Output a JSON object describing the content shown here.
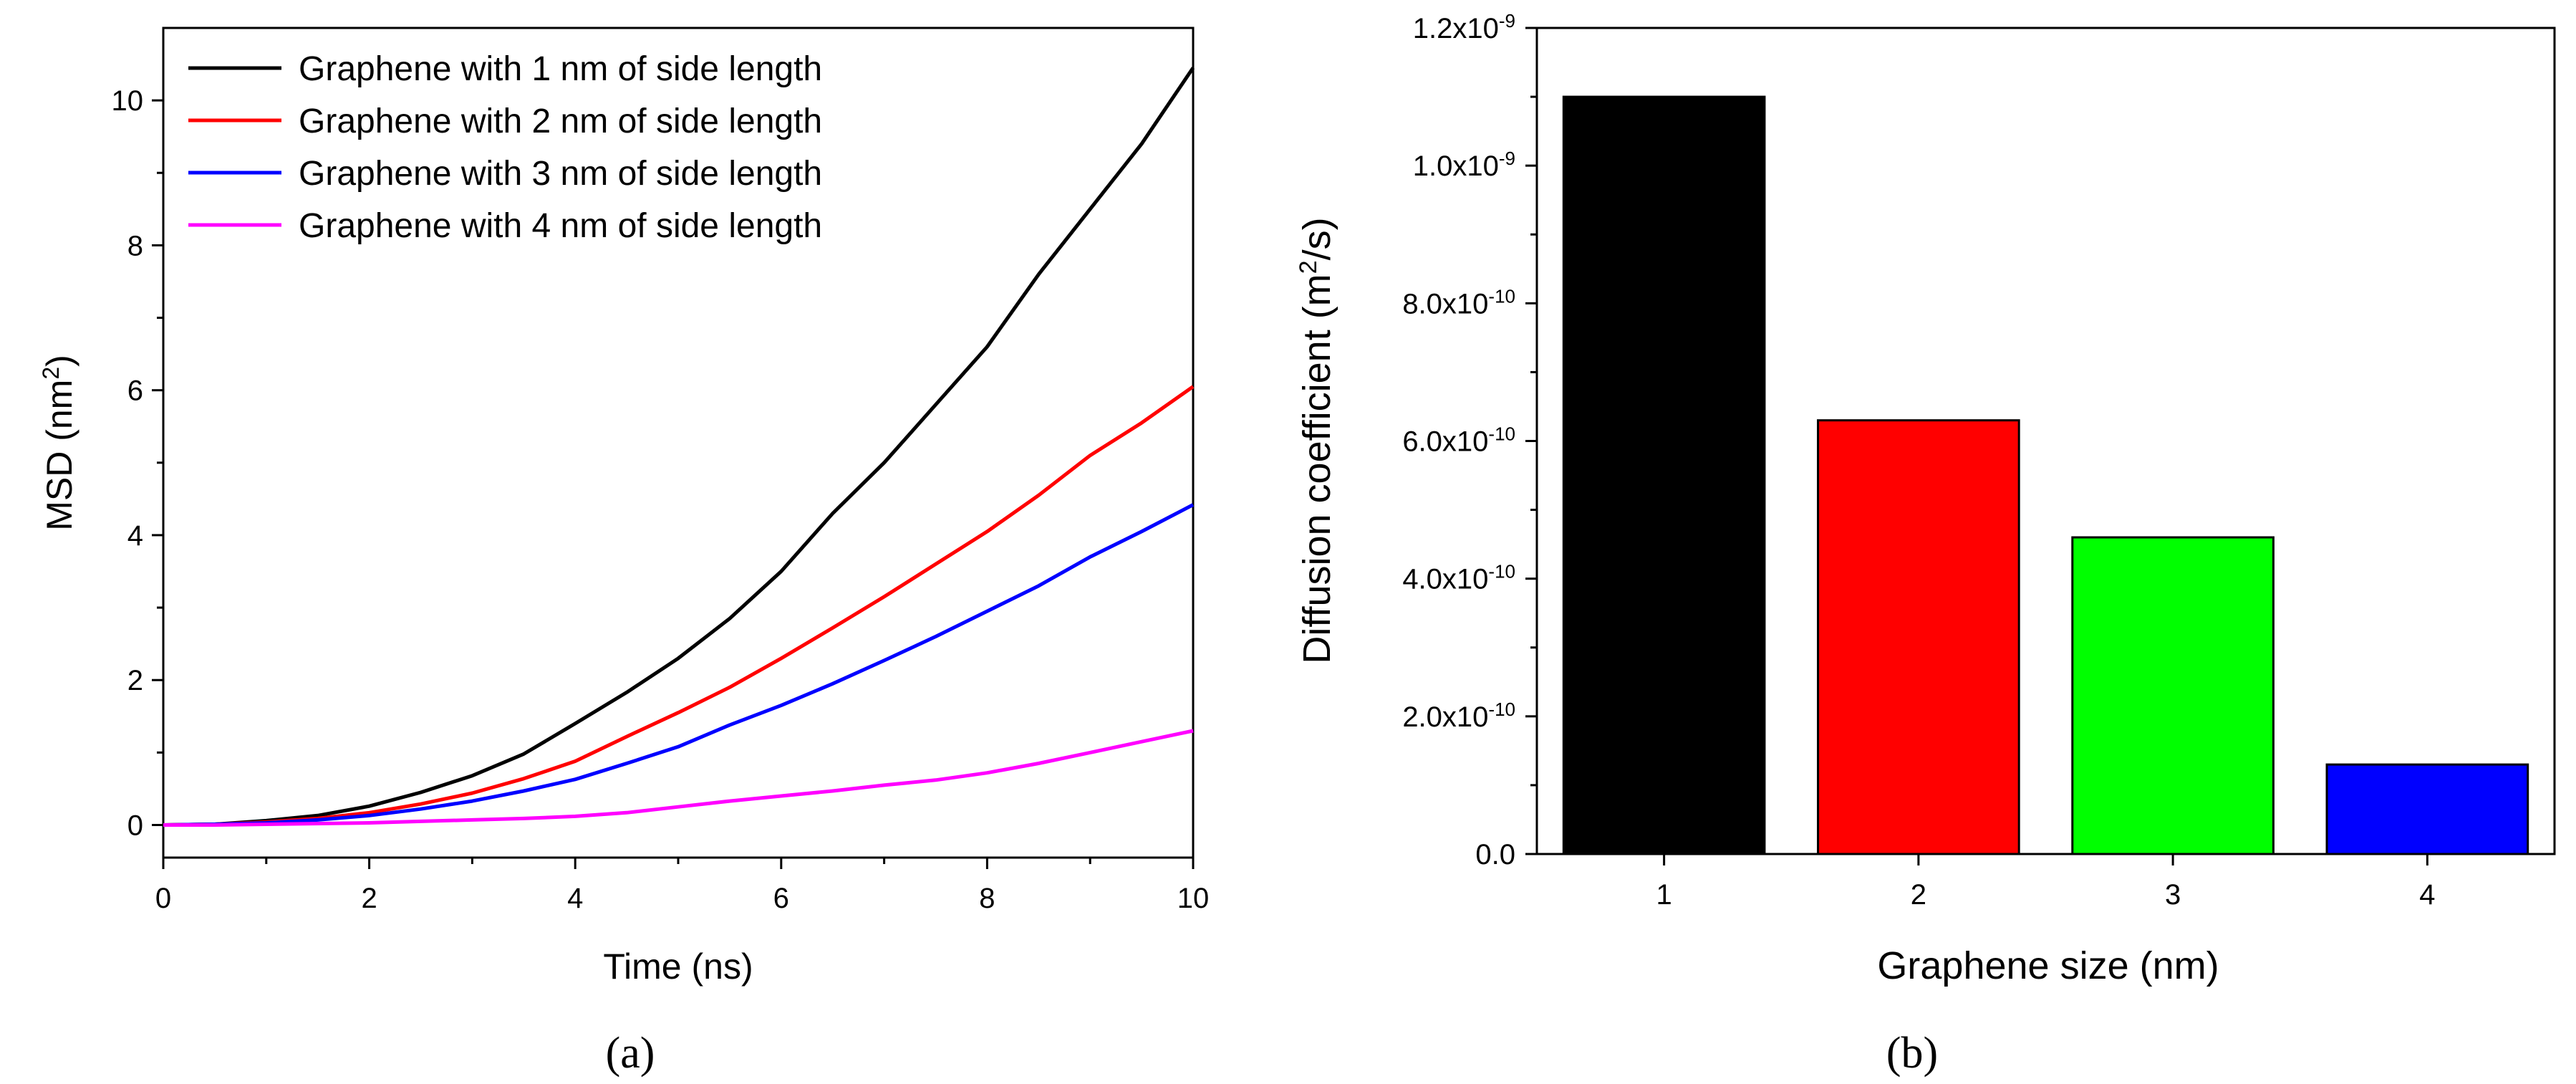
{
  "chart_data": [
    {
      "type": "line",
      "panel_label": "(a)",
      "xlabel": "Time (ns)",
      "ylabel_main": "MSD (nm",
      "ylabel_sup": "2",
      "ylabel_end": ")",
      "xlim": [
        0,
        10
      ],
      "ylim": [
        -0.45,
        11
      ],
      "xticks": [
        0,
        2,
        4,
        6,
        8,
        10
      ],
      "yticks": [
        0,
        2,
        4,
        6,
        8,
        10
      ],
      "legend_position": "top-left",
      "series": [
        {
          "name": "Graphene with 1 nm of side length",
          "color": "#000000",
          "x": [
            0,
            0.5,
            1,
            1.5,
            2,
            2.5,
            3,
            3.5,
            4,
            4.5,
            5,
            5.5,
            6,
            6.5,
            7,
            7.5,
            8,
            8.5,
            9,
            9.5,
            10
          ],
          "y": [
            0,
            0.01,
            0.06,
            0.13,
            0.26,
            0.45,
            0.68,
            0.98,
            1.4,
            1.83,
            2.3,
            2.85,
            3.5,
            4.3,
            5.0,
            5.8,
            6.6,
            7.6,
            8.5,
            9.4,
            10.45
          ]
        },
        {
          "name": "Graphene with 2 nm of side length",
          "color": "#ff0000",
          "x": [
            0,
            0.5,
            1,
            1.5,
            2,
            2.5,
            3,
            3.5,
            4,
            4.5,
            5,
            5.5,
            6,
            6.5,
            7,
            7.5,
            8,
            8.5,
            9,
            9.5,
            10
          ],
          "y": [
            0,
            0.01,
            0.04,
            0.09,
            0.17,
            0.29,
            0.44,
            0.64,
            0.88,
            1.22,
            1.55,
            1.9,
            2.3,
            2.72,
            3.15,
            3.6,
            4.05,
            4.55,
            5.1,
            5.55,
            6.05
          ]
        },
        {
          "name": "Graphene with 3 nm of side length",
          "color": "#0000ff",
          "x": [
            0,
            0.5,
            1,
            1.5,
            2,
            2.5,
            3,
            3.5,
            4,
            4.5,
            5,
            5.5,
            6,
            6.5,
            7,
            7.5,
            8,
            8.5,
            9,
            9.5,
            10
          ],
          "y": [
            0,
            0.01,
            0.03,
            0.07,
            0.13,
            0.22,
            0.33,
            0.47,
            0.63,
            0.85,
            1.08,
            1.38,
            1.65,
            1.95,
            2.27,
            2.6,
            2.95,
            3.3,
            3.7,
            4.05,
            4.42
          ]
        },
        {
          "name": "Graphene with 4 nm of side length",
          "color": "#ff00ff",
          "x": [
            0,
            0.5,
            1,
            1.5,
            2,
            2.5,
            3,
            3.5,
            4,
            4.5,
            5,
            5.5,
            6,
            6.5,
            7,
            7.5,
            8,
            8.5,
            9,
            9.5,
            10
          ],
          "y": [
            0,
            0.0,
            0.01,
            0.02,
            0.03,
            0.05,
            0.07,
            0.09,
            0.12,
            0.17,
            0.25,
            0.33,
            0.4,
            0.47,
            0.55,
            0.62,
            0.72,
            0.85,
            1.0,
            1.15,
            1.3
          ]
        }
      ]
    },
    {
      "type": "bar",
      "panel_label": "(b)",
      "xlabel": "Graphene size (nm)",
      "ylabel_main": "Diffusion coefficient (m",
      "ylabel_sup": "2",
      "ylabel_end": "/s)",
      "categories": [
        "1",
        "2",
        "3",
        "4"
      ],
      "values": [
        1.1e-09,
        6.3e-10,
        4.6e-10,
        1.3e-10
      ],
      "colors": [
        "#000000",
        "#ff0000",
        "#00ff00",
        "#0000ff"
      ],
      "ylim": [
        0,
        1.2e-09
      ],
      "yticks": [
        {
          "value": 0,
          "base": "0.0",
          "exp": ""
        },
        {
          "value": 2e-10,
          "base": "2.0x10",
          "exp": "-10"
        },
        {
          "value": 4e-10,
          "base": "4.0x10",
          "exp": "-10"
        },
        {
          "value": 6e-10,
          "base": "6.0x10",
          "exp": "-10"
        },
        {
          "value": 8e-10,
          "base": "8.0x10",
          "exp": "-10"
        },
        {
          "value": 1e-09,
          "base": "1.0x10",
          "exp": "-9"
        },
        {
          "value": 1.2e-09,
          "base": "1.2x10",
          "exp": "-9"
        }
      ]
    }
  ]
}
